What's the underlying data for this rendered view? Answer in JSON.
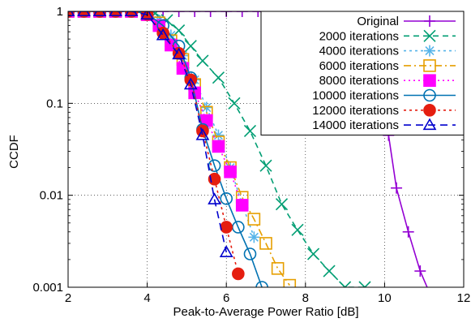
{
  "chart_data": {
    "type": "line",
    "title": "",
    "xlabel": "Peak-to-Average Power Ratio [dB]",
    "ylabel": "CCDF",
    "xlim": [
      2,
      12
    ],
    "ylim": [
      0.001,
      1
    ],
    "yscale": "log",
    "xticks": [
      2,
      4,
      6,
      8,
      10,
      12
    ],
    "xtick_labels": [
      "2",
      "4",
      "6",
      "8",
      "10",
      "12"
    ],
    "yticks": [
      0.001,
      0.01,
      0.1,
      1
    ],
    "ytick_labels": [
      "0.001",
      "0.01",
      "0.1",
      "1"
    ],
    "grid": true,
    "legend_position": "top-right",
    "series": [
      {
        "name": "Original",
        "color": "#9400d3",
        "dash": "",
        "marker": "plus",
        "x": [
          2.0,
          2.4,
          2.8,
          3.2,
          3.6,
          4.0,
          4.4,
          4.8,
          5.2,
          5.6,
          6.0,
          6.4,
          6.8,
          7.2,
          7.6,
          8.0,
          8.3,
          8.6,
          8.9,
          9.1,
          9.3,
          9.5,
          9.8,
          10.1,
          10.3,
          10.6,
          10.9,
          11.2
        ],
        "y": [
          1,
          1,
          1,
          1,
          1,
          1,
          1,
          1,
          1,
          1,
          1,
          1,
          1,
          1,
          0.99,
          0.98,
          0.97,
          0.95,
          0.9,
          0.8,
          0.55,
          0.35,
          0.13,
          0.045,
          0.012,
          0.004,
          0.0015,
          0.00075
        ]
      },
      {
        "name": "2000 iterations",
        "color": "#009e73",
        "dash": "7,5",
        "marker": "x",
        "x": [
          2.0,
          2.4,
          2.8,
          3.2,
          3.6,
          4.0,
          4.2,
          4.5,
          4.8,
          5.1,
          5.4,
          5.8,
          6.2,
          6.6,
          7.0,
          7.4,
          7.8,
          8.2,
          8.6,
          9.0,
          9.5
        ],
        "y": [
          1,
          1,
          1,
          1,
          1,
          0.98,
          0.95,
          0.8,
          0.62,
          0.42,
          0.29,
          0.19,
          0.1,
          0.05,
          0.021,
          0.008,
          0.0042,
          0.0023,
          0.0015,
          0.001,
          0.001
        ]
      },
      {
        "name": "4000 iterations",
        "color": "#56b4e9",
        "dash": "3,4",
        "marker": "asterisk",
        "x": [
          2.0,
          2.4,
          2.8,
          3.2,
          3.6,
          4.0,
          4.3,
          4.6,
          4.9,
          5.2,
          5.5,
          5.8,
          6.1,
          6.4,
          6.7
        ],
        "y": [
          1,
          1,
          1,
          1,
          1,
          0.95,
          0.8,
          0.55,
          0.33,
          0.18,
          0.09,
          0.045,
          0.02,
          0.008,
          0.0035
        ]
      },
      {
        "name": "6000 iterations",
        "color": "#e69f00",
        "dash": "9,4,2,4",
        "marker": "square",
        "x": [
          2.0,
          2.4,
          2.8,
          3.2,
          3.6,
          4.0,
          4.3,
          4.6,
          4.9,
          5.2,
          5.5,
          5.8,
          6.1,
          6.4,
          6.7,
          7.0,
          7.3,
          7.6
        ],
        "y": [
          1,
          1,
          1,
          1,
          1,
          0.92,
          0.75,
          0.48,
          0.3,
          0.16,
          0.08,
          0.038,
          0.02,
          0.0095,
          0.0055,
          0.003,
          0.0016,
          0.00105
        ]
      },
      {
        "name": "8000 iterations",
        "color": "#ff00ff",
        "dash": "2,4",
        "marker": "filled-square",
        "x": [
          2.0,
          2.4,
          2.8,
          3.2,
          3.6,
          4.0,
          4.3,
          4.6,
          4.9,
          5.2,
          5.5,
          5.8,
          6.1,
          6.4
        ],
        "y": [
          1,
          1,
          1,
          1,
          1,
          0.92,
          0.7,
          0.43,
          0.24,
          0.13,
          0.065,
          0.034,
          0.018,
          0.0078
        ]
      },
      {
        "name": "10000 iterations",
        "color": "#0072b2",
        "dash": "",
        "marker": "circle",
        "x": [
          2.0,
          2.4,
          2.8,
          3.2,
          3.6,
          4.0,
          4.4,
          4.8,
          5.1,
          5.4,
          5.7,
          6.0,
          6.3,
          6.6,
          6.9
        ],
        "y": [
          1,
          1,
          1,
          1,
          1,
          0.95,
          0.7,
          0.42,
          0.19,
          0.052,
          0.021,
          0.0092,
          0.0045,
          0.0023,
          0.001
        ]
      },
      {
        "name": "12000 iterations",
        "color": "#e51e10",
        "dash": "3,4",
        "marker": "filled-circle",
        "x": [
          2.0,
          2.4,
          2.8,
          3.2,
          3.6,
          4.0,
          4.4,
          4.8,
          5.1,
          5.4,
          5.7,
          6.0,
          6.3
        ],
        "y": [
          1,
          1,
          1,
          1,
          1,
          0.93,
          0.58,
          0.35,
          0.18,
          0.05,
          0.015,
          0.0045,
          0.0014
        ]
      },
      {
        "name": "14000 iterations",
        "color": "#0000cd",
        "dash": "9,6",
        "marker": "triangle",
        "x": [
          2.0,
          2.4,
          2.8,
          3.2,
          3.6,
          4.0,
          4.4,
          4.8,
          5.1,
          5.4,
          5.7,
          6.0
        ],
        "y": [
          1,
          1,
          1,
          1,
          1,
          0.92,
          0.55,
          0.34,
          0.16,
          0.045,
          0.009,
          0.0024
        ]
      }
    ]
  }
}
